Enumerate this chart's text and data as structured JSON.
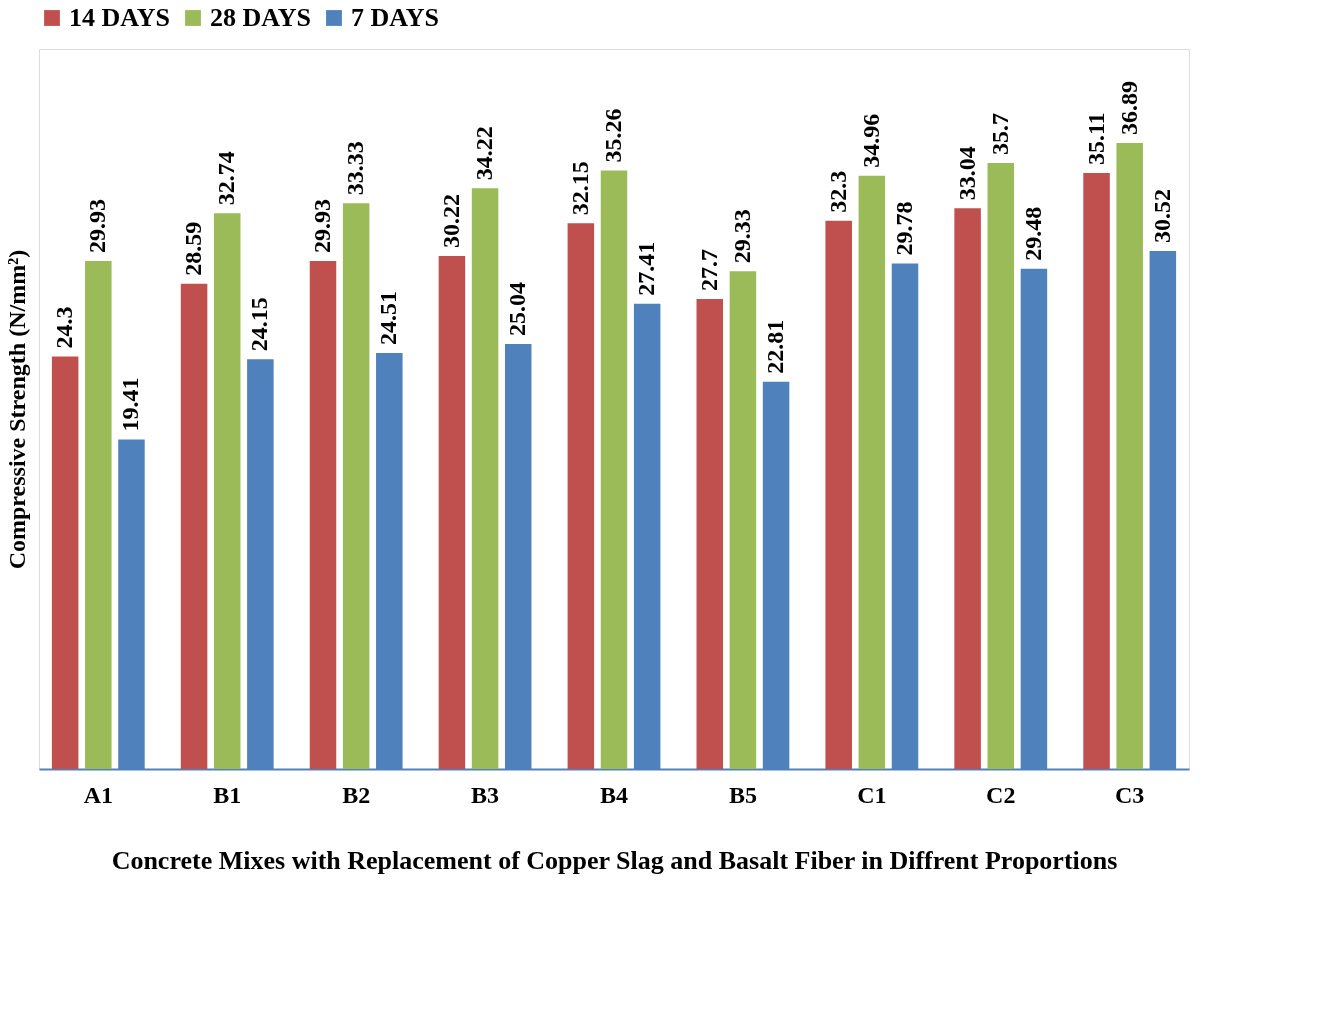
{
  "chart_data": {
    "type": "bar",
    "xlabel": "Concrete Mixes with Replacement of Copper Slag and Basalt Fiber in Diffrent Proportions",
    "ylabel": "Compressive Strength (N/mm²)",
    "categories": [
      "A1",
      "B1",
      "B2",
      "B3",
      "B4",
      "B5",
      "C1",
      "C2",
      "C3"
    ],
    "series": [
      {
        "name": "14 DAYS",
        "color": "#c0504d",
        "values": [
          24.3,
          28.59,
          29.93,
          30.22,
          32.15,
          27.7,
          32.3,
          33.04,
          35.11
        ]
      },
      {
        "name": "28 DAYS",
        "color": "#9bbb59",
        "values": [
          29.93,
          32.74,
          33.33,
          34.22,
          35.26,
          29.33,
          34.96,
          35.7,
          36.89
        ]
      },
      {
        "name": "7 DAYS",
        "color": "#4f81bd",
        "values": [
          19.41,
          24.15,
          24.51,
          25.04,
          27.41,
          22.81,
          29.78,
          29.48,
          30.52
        ]
      }
    ],
    "data_labels": true,
    "legend": "top",
    "grid": false
  }
}
